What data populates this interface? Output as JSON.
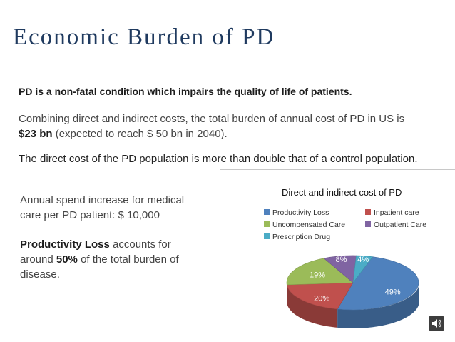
{
  "slide": {
    "title": "Economic Burden of PD",
    "line1": "PD is a non-fatal condition which impairs the quality of life of patients.",
    "line2_a": "Combining direct and indirect costs, the total burden of annual cost of PD in US is ",
    "line2_b": "$23 bn",
    "line2_c": " (expected to reach $ 50 bn in 2040).",
    "line3": "The direct cost of the PD population is more than double that of a control population.",
    "left1": "Annual spend increase for medical care per PD patient: $ 10,000",
    "left2_a": "Productivity Loss",
    "left2_b": " accounts for around ",
    "left2_c": "50%",
    "left2_d": " of the total burden of disease."
  },
  "chart_data": {
    "type": "pie",
    "title": "Direct and indirect cost of PD",
    "legend_position": "top",
    "slices": [
      {
        "label": "Productivity Loss",
        "value": 49,
        "color": "#4f81bd"
      },
      {
        "label": "Inpatient care",
        "value": 20,
        "color": "#c0504d"
      },
      {
        "label": "Uncompensated Care",
        "value": 19,
        "color": "#9bbb59"
      },
      {
        "label": "Outpatient Care",
        "value": 8,
        "color": "#8064a2"
      },
      {
        "label": "Prescription Drug",
        "value": 4,
        "color": "#4bacc6"
      }
    ],
    "data_labels": [
      "49%",
      "20%",
      "19%",
      "8%",
      "4%"
    ]
  },
  "icons": {
    "speaker": "speaker-icon"
  }
}
